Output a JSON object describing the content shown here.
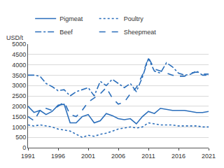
{
  "chart_data": {
    "type": "line",
    "y_label": "USD/t",
    "x": [
      1991,
      1992,
      1993,
      1994,
      1995,
      1996,
      1997,
      1998,
      1999,
      2000,
      2001,
      2002,
      2003,
      2004,
      2005,
      2006,
      2007,
      2008,
      2009,
      2010,
      2011,
      2012,
      2013,
      2014,
      2015,
      2016,
      2017,
      2018,
      2019,
      2020,
      2021
    ],
    "series": [
      {
        "name": "Pigmeat",
        "color": "#2a6ebb",
        "line_style": "solid",
        "values": [
          2000,
          1700,
          1800,
          1600,
          1750,
          2050,
          2100,
          1200,
          1200,
          1500,
          1600,
          1200,
          1300,
          1650,
          1550,
          1400,
          1350,
          1400,
          1150,
          1500,
          1750,
          1650,
          1900,
          1850,
          1800,
          1800,
          1800,
          1750,
          1700,
          1700,
          1750
        ]
      },
      {
        "name": "Poultry",
        "color": "#2a6ebb",
        "line_style": "dot",
        "values": [
          1100,
          1050,
          1100,
          1050,
          1000,
          900,
          850,
          800,
          650,
          500,
          600,
          550,
          650,
          700,
          800,
          900,
          950,
          1000,
          950,
          1000,
          1200,
          1150,
          1100,
          1100,
          1100,
          1050,
          1050,
          1050,
          1050,
          1000,
          1000
        ]
      },
      {
        "name": "Beef",
        "color": "#2a6ebb",
        "line_style": "dashdot",
        "values": [
          3500,
          3500,
          3450,
          3100,
          2950,
          2750,
          2800,
          2500,
          2700,
          2800,
          2900,
          2500,
          3200,
          3000,
          3300,
          3100,
          2900,
          3100,
          2700,
          3400,
          4300,
          3700,
          3600,
          4100,
          3900,
          3600,
          3500,
          3550,
          3700,
          3500,
          3500
        ]
      },
      {
        "name": "Sheepmeat",
        "color": "#2a6ebb",
        "line_style": "dash",
        "values": [
          1500,
          1300,
          1800,
          1900,
          1800,
          2000,
          2200,
          1600,
          1500,
          1800,
          2200,
          2400,
          2600,
          2900,
          2400,
          2100,
          2200,
          2600,
          2900,
          3500,
          4350,
          3800,
          3700,
          3600,
          3500,
          3450,
          3450,
          3600,
          3650,
          3550,
          3550
        ]
      }
    ],
    "xlim": [
      1991,
      2021
    ],
    "xticks": [
      1991,
      1996,
      2001,
      2006,
      2011,
      2016,
      2021
    ],
    "ylim": [
      0,
      5000
    ],
    "yticks": [
      0,
      500,
      1000,
      1500,
      2000,
      2500,
      3000,
      3500,
      4000,
      4500,
      5000
    ],
    "grid": true,
    "legend": "top"
  }
}
